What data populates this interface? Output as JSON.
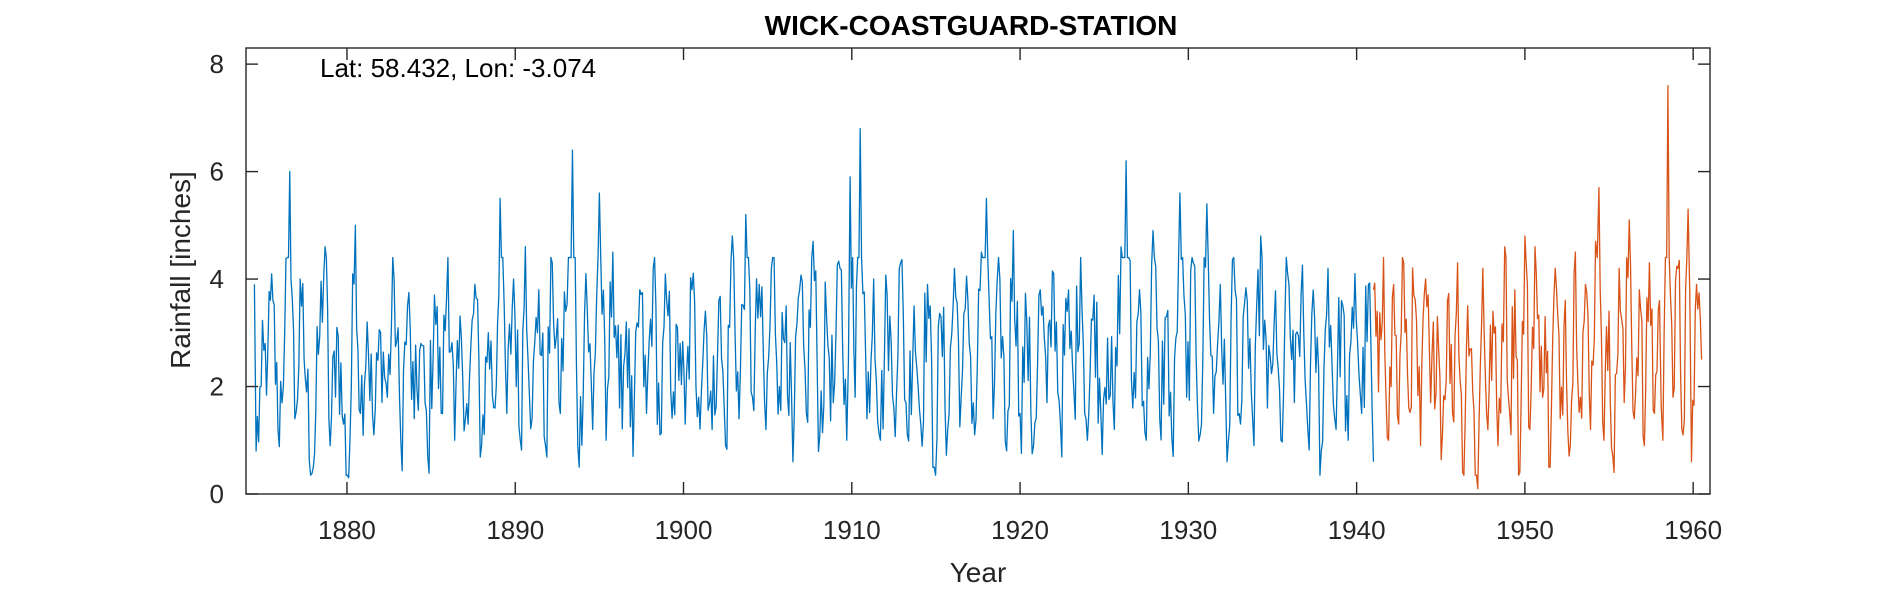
{
  "chart_data": {
    "type": "line",
    "title": "WICK-COASTGUARD-STATION",
    "annotation": "Lat: 58.432, Lon: -3.074",
    "xlabel": "Year",
    "ylabel": "Rainfall [inches]",
    "xlim": [
      1874,
      1961
    ],
    "ylim": [
      0,
      8.3
    ],
    "xticks": [
      1880,
      1890,
      1900,
      1910,
      1920,
      1930,
      1940,
      1950,
      1960
    ],
    "yticks": [
      0,
      2,
      4,
      6,
      8
    ],
    "grid": false,
    "box": true,
    "series": [
      {
        "color": "#0072BD",
        "step": 0.08333,
        "x_start": 1874.5,
        "x_end": 1941.0,
        "anchors": [
          [
            1874.5,
            3.9
          ],
          [
            1874.6,
            0.8
          ],
          [
            1874.9,
            2.0
          ],
          [
            1875.3,
            2.7
          ],
          [
            1875.6,
            3.6
          ],
          [
            1875.9,
            1.2
          ],
          [
            1876.3,
            3.0
          ],
          [
            1876.6,
            6.0
          ],
          [
            1876.9,
            1.4
          ],
          [
            1877.3,
            3.5
          ],
          [
            1877.6,
            1.9
          ],
          [
            1878.0,
            0.5
          ],
          [
            1878.3,
            2.6
          ],
          [
            1878.7,
            4.6
          ],
          [
            1879.0,
            0.9
          ],
          [
            1879.4,
            3.1
          ],
          [
            1879.8,
            1.3
          ],
          [
            1880.1,
            0.3
          ],
          [
            1880.5,
            5.0
          ],
          [
            1880.8,
            1.5
          ],
          [
            1881.2,
            3.2
          ],
          [
            1881.6,
            1.1
          ],
          [
            1882.0,
            3.0
          ],
          [
            1882.4,
            1.8
          ],
          [
            1882.8,
            4.0
          ],
          [
            1883.2,
            1.0
          ],
          [
            1883.6,
            3.5
          ],
          [
            1884.0,
            1.4
          ],
          [
            1884.4,
            2.8
          ],
          [
            1884.8,
            0.7
          ],
          [
            1885.2,
            3.7
          ],
          [
            1885.6,
            1.5
          ],
          [
            1886.0,
            4.4
          ],
          [
            1886.4,
            1.0
          ],
          [
            1886.8,
            2.9
          ],
          [
            1887.2,
            1.3
          ],
          [
            1887.6,
            3.9
          ],
          [
            1888.0,
            0.9
          ],
          [
            1888.4,
            3.0
          ],
          [
            1888.8,
            1.6
          ],
          [
            1889.1,
            5.5
          ],
          [
            1889.5,
            1.5
          ],
          [
            1889.9,
            4.0
          ],
          [
            1890.3,
            1.0
          ],
          [
            1890.6,
            4.6
          ],
          [
            1891.0,
            1.4
          ],
          [
            1891.4,
            3.8
          ],
          [
            1891.8,
            0.9
          ],
          [
            1892.2,
            4.3
          ],
          [
            1892.6,
            1.7
          ],
          [
            1893.0,
            3.4
          ],
          [
            1893.4,
            6.4
          ],
          [
            1893.8,
            0.5
          ],
          [
            1894.2,
            4.1
          ],
          [
            1894.6,
            1.2
          ],
          [
            1895.0,
            5.6
          ],
          [
            1895.4,
            1.0
          ],
          [
            1895.8,
            4.5
          ],
          [
            1896.2,
            1.6
          ],
          [
            1896.6,
            3.2
          ],
          [
            1897.0,
            0.7
          ],
          [
            1897.4,
            3.8
          ],
          [
            1897.8,
            1.5
          ],
          [
            1898.2,
            4.2
          ],
          [
            1898.6,
            1.1
          ],
          [
            1899.0,
            3.6
          ],
          [
            1899.4,
            1.9
          ],
          [
            1899.8,
            2.8
          ],
          [
            1900.1,
            1.3
          ],
          [
            1900.5,
            3.8
          ],
          [
            1900.9,
            1.8
          ],
          [
            1901.3,
            3.4
          ],
          [
            1901.7,
            1.2
          ],
          [
            1902.1,
            3.6
          ],
          [
            1902.5,
            0.9
          ],
          [
            1902.9,
            4.8
          ],
          [
            1903.3,
            1.4
          ],
          [
            1903.7,
            5.2
          ],
          [
            1904.1,
            1.8
          ],
          [
            1904.5,
            3.9
          ],
          [
            1904.9,
            1.2
          ],
          [
            1905.3,
            4.4
          ],
          [
            1905.7,
            2.0
          ],
          [
            1906.1,
            3.5
          ],
          [
            1906.5,
            0.6
          ],
          [
            1906.9,
            3.8
          ],
          [
            1907.3,
            1.5
          ],
          [
            1907.7,
            4.7
          ],
          [
            1908.1,
            1.1
          ],
          [
            1908.5,
            3.3
          ],
          [
            1908.9,
            1.7
          ],
          [
            1909.3,
            4.2
          ],
          [
            1909.7,
            1.0
          ],
          [
            1909.9,
            5.9
          ],
          [
            1910.2,
            1.8
          ],
          [
            1910.5,
            6.8
          ],
          [
            1910.9,
            1.4
          ],
          [
            1911.3,
            4.0
          ],
          [
            1911.7,
            1.0
          ],
          [
            1912.1,
            3.7
          ],
          [
            1912.5,
            1.6
          ],
          [
            1912.9,
            4.3
          ],
          [
            1913.3,
            1.1
          ],
          [
            1913.7,
            3.5
          ],
          [
            1914.1,
            1.3
          ],
          [
            1914.5,
            3.9
          ],
          [
            1914.9,
            0.5
          ],
          [
            1915.3,
            3.3
          ],
          [
            1915.7,
            1.2
          ],
          [
            1916.1,
            4.2
          ],
          [
            1916.5,
            1.8
          ],
          [
            1916.9,
            3.6
          ],
          [
            1917.3,
            1.1
          ],
          [
            1917.7,
            4.5
          ],
          [
            1918.0,
            5.5
          ],
          [
            1918.4,
            1.4
          ],
          [
            1918.8,
            4.0
          ],
          [
            1919.2,
            0.8
          ],
          [
            1919.6,
            4.9
          ],
          [
            1920.0,
            1.5
          ],
          [
            1920.4,
            3.2
          ],
          [
            1920.8,
            0.9
          ],
          [
            1921.2,
            3.8
          ],
          [
            1921.6,
            1.7
          ],
          [
            1922.0,
            4.1
          ],
          [
            1922.4,
            1.3
          ],
          [
            1922.8,
            3.4
          ],
          [
            1923.2,
            1.9
          ],
          [
            1923.6,
            4.4
          ],
          [
            1924.0,
            1.0
          ],
          [
            1924.4,
            3.7
          ],
          [
            1924.8,
            1.5
          ],
          [
            1925.2,
            2.9
          ],
          [
            1925.6,
            1.2
          ],
          [
            1926.0,
            4.6
          ],
          [
            1926.3,
            6.2
          ],
          [
            1926.7,
            1.6
          ],
          [
            1927.1,
            3.8
          ],
          [
            1927.5,
            1.0
          ],
          [
            1927.9,
            4.9
          ],
          [
            1928.3,
            1.4
          ],
          [
            1928.7,
            3.3
          ],
          [
            1929.1,
            0.7
          ],
          [
            1929.5,
            5.6
          ],
          [
            1929.9,
            1.8
          ],
          [
            1930.3,
            4.3
          ],
          [
            1930.7,
            1.1
          ],
          [
            1931.1,
            5.4
          ],
          [
            1931.5,
            1.5
          ],
          [
            1931.9,
            3.9
          ],
          [
            1932.3,
            0.6
          ],
          [
            1932.7,
            4.4
          ],
          [
            1933.1,
            1.3
          ],
          [
            1933.5,
            3.6
          ],
          [
            1933.9,
            0.9
          ],
          [
            1934.3,
            4.8
          ],
          [
            1934.7,
            1.6
          ],
          [
            1935.1,
            3.2
          ],
          [
            1935.5,
            1.0
          ],
          [
            1935.9,
            4.1
          ],
          [
            1936.3,
            1.7
          ],
          [
            1936.7,
            3.7
          ],
          [
            1937.1,
            1.2
          ],
          [
            1937.5,
            3.3
          ],
          [
            1937.9,
            0.8
          ],
          [
            1938.3,
            4.2
          ],
          [
            1938.7,
            1.4
          ],
          [
            1939.1,
            3.6
          ],
          [
            1939.5,
            1.0
          ],
          [
            1939.9,
            4.1
          ],
          [
            1940.3,
            1.5
          ],
          [
            1940.7,
            3.9
          ],
          [
            1941.0,
            0.6
          ]
        ]
      },
      {
        "color": "#D95319",
        "step": 0.08333,
        "x_start": 1941.0,
        "x_end": 1960.5,
        "anchors": [
          [
            1941.0,
            3.8
          ],
          [
            1941.3,
            1.9
          ],
          [
            1941.6,
            4.4
          ],
          [
            1941.9,
            1.0
          ],
          [
            1942.2,
            3.9
          ],
          [
            1942.5,
            1.3
          ],
          [
            1942.8,
            4.3
          ],
          [
            1943.1,
            1.6
          ],
          [
            1943.4,
            3.7
          ],
          [
            1943.8,
            0.9
          ],
          [
            1944.1,
            4.0
          ],
          [
            1944.4,
            1.7
          ],
          [
            1944.8,
            3.3
          ],
          [
            1945.1,
            1.1
          ],
          [
            1945.4,
            3.6
          ],
          [
            1945.7,
            1.5
          ],
          [
            1946.0,
            4.3
          ],
          [
            1946.3,
            0.4
          ],
          [
            1946.6,
            3.5
          ],
          [
            1946.9,
            1.9
          ],
          [
            1947.2,
            0.1
          ],
          [
            1947.5,
            4.2
          ],
          [
            1947.8,
            1.2
          ],
          [
            1948.1,
            3.4
          ],
          [
            1948.4,
            0.9
          ],
          [
            1948.8,
            4.6
          ],
          [
            1949.1,
            1.5
          ],
          [
            1949.4,
            3.8
          ],
          [
            1949.7,
            0.4
          ],
          [
            1950.0,
            4.8
          ],
          [
            1950.3,
            1.2
          ],
          [
            1950.6,
            4.6
          ],
          [
            1950.9,
            1.9
          ],
          [
            1951.2,
            3.3
          ],
          [
            1951.5,
            0.5
          ],
          [
            1951.8,
            4.2
          ],
          [
            1952.1,
            1.4
          ],
          [
            1952.4,
            3.6
          ],
          [
            1952.7,
            0.9
          ],
          [
            1953.0,
            4.5
          ],
          [
            1953.3,
            1.8
          ],
          [
            1953.6,
            3.9
          ],
          [
            1953.9,
            1.2
          ],
          [
            1954.2,
            4.7
          ],
          [
            1954.4,
            5.7
          ],
          [
            1954.7,
            1.0
          ],
          [
            1955.0,
            3.4
          ],
          [
            1955.3,
            0.4
          ],
          [
            1955.6,
            4.2
          ],
          [
            1955.9,
            1.7
          ],
          [
            1956.2,
            5.1
          ],
          [
            1956.5,
            1.4
          ],
          [
            1956.8,
            3.8
          ],
          [
            1957.1,
            0.9
          ],
          [
            1957.4,
            4.3
          ],
          [
            1957.7,
            1.5
          ],
          [
            1958.0,
            3.6
          ],
          [
            1958.2,
            1.0
          ],
          [
            1958.5,
            7.6
          ],
          [
            1958.8,
            1.8
          ],
          [
            1959.1,
            4.2
          ],
          [
            1959.4,
            1.1
          ],
          [
            1959.7,
            5.3
          ],
          [
            1959.9,
            0.6
          ],
          [
            1960.2,
            3.9
          ],
          [
            1960.5,
            2.5
          ]
        ]
      }
    ]
  }
}
